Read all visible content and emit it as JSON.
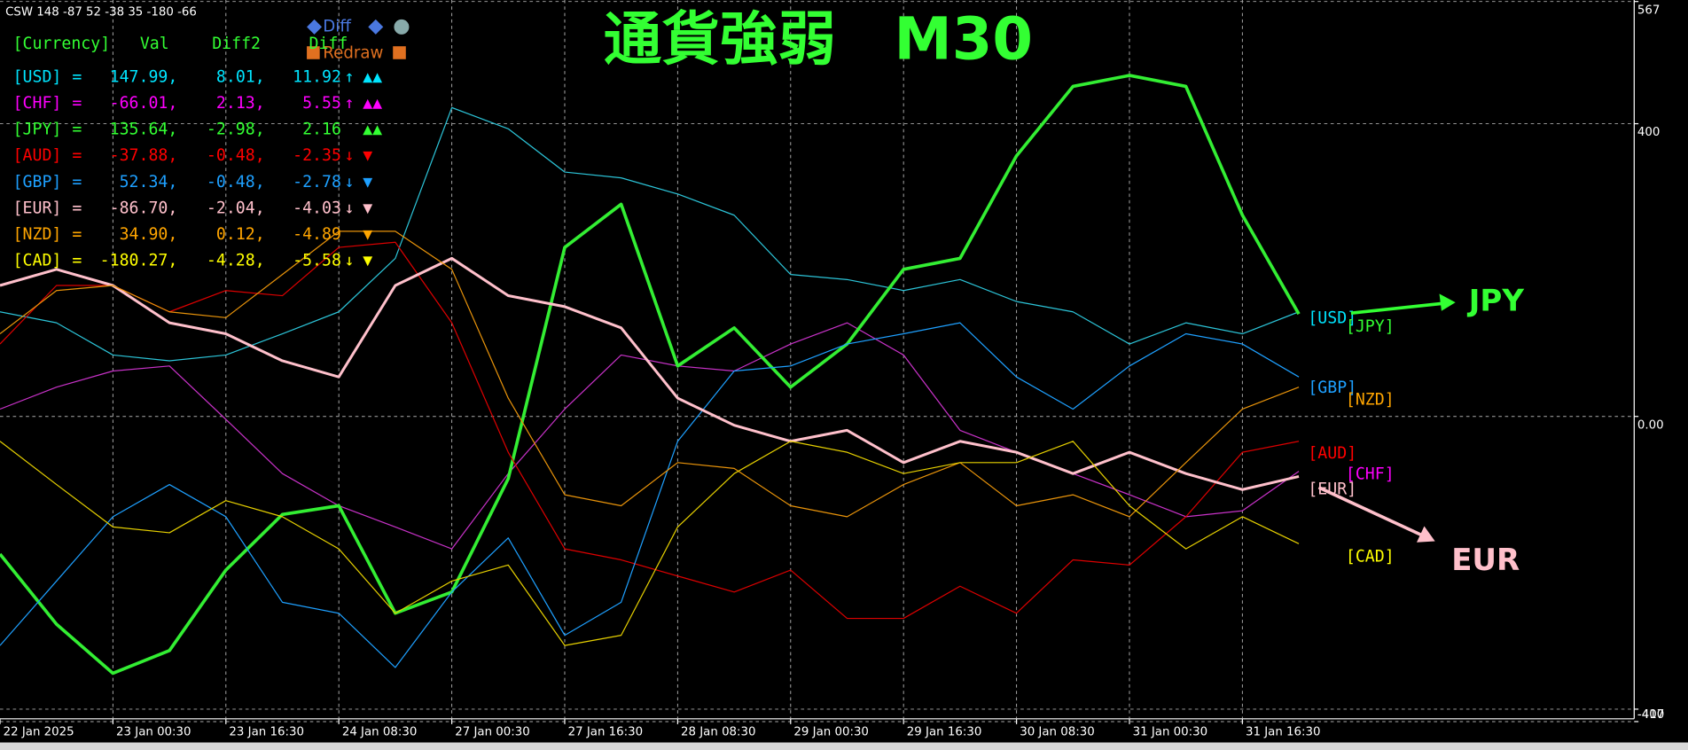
{
  "chart_data": {
    "type": "line",
    "title": "通貨強弱　M30",
    "header_text": "CSW 148 -87 52 -38 35 -180 -66",
    "x": [
      0,
      16,
      32,
      48,
      64,
      80,
      96,
      112,
      128,
      144,
      160,
      176,
      192,
      208,
      224,
      240,
      256,
      272,
      288,
      304,
      320,
      336,
      352,
      368
    ],
    "xlim": [
      0,
      463
    ],
    "xticks": [
      {
        "value": 0,
        "label": "22 Jan 2025"
      },
      {
        "value": 32,
        "label": "23 Jan 00:30"
      },
      {
        "value": 64,
        "label": "23 Jan 16:30"
      },
      {
        "value": 96,
        "label": "24 Jan 08:30"
      },
      {
        "value": 128,
        "label": "27 Jan 00:30"
      },
      {
        "value": 160,
        "label": "27 Jan 16:30"
      },
      {
        "value": 192,
        "label": "28 Jan 08:30"
      },
      {
        "value": 224,
        "label": "29 Jan 00:30"
      },
      {
        "value": 256,
        "label": "29 Jan 16:30"
      },
      {
        "value": 288,
        "label": "30 Jan 08:30"
      },
      {
        "value": 320,
        "label": "31 Jan 00:30"
      },
      {
        "value": 352,
        "label": "31 Jan 16:30"
      }
    ],
    "ylim": [
      -417,
      567
    ],
    "yticks": [
      567,
      400,
      {
        "value": 0,
        "label": "0.00"
      },
      -400,
      -417
    ],
    "grid": true,
    "series": [
      {
        "name": "[USD]",
        "color": "#00e5ff",
        "line_color": "#2cc4d8",
        "width": 1,
        "values": [
          143,
          128,
          84,
          76,
          84,
          113,
          143,
          216,
          422,
          393,
          334,
          326,
          304,
          275,
          194,
          187,
          172,
          187,
          157,
          143,
          99,
          128,
          113,
          143
        ]
      },
      {
        "name": "[CHF]",
        "color": "#ff00ff",
        "line_color": "#c832c8",
        "width": 1,
        "values": [
          10,
          40,
          62,
          69,
          -4,
          -78,
          -122,
          -151,
          -181,
          -78,
          10,
          84,
          69,
          62,
          99,
          128,
          84,
          -19,
          -49,
          -78,
          -107,
          -137,
          -129,
          -75
        ]
      },
      {
        "name": "[JPY]",
        "color": "#33ff33",
        "line_color": "#33ee33",
        "width": 3,
        "values": [
          -188,
          -284,
          -351,
          -320,
          -210,
          -134,
          -122,
          -269,
          -240,
          -85,
          231,
          290,
          69,
          121,
          40,
          99,
          201,
          216,
          356,
          451,
          466,
          451,
          275,
          140
        ]
      },
      {
        "name": "[AUD]",
        "color": "#ff0000",
        "line_color": "#dd0000",
        "width": 1,
        "values": [
          99,
          179,
          179,
          143,
          172,
          165,
          231,
          238,
          128,
          -49,
          -181,
          -196,
          -218,
          -240,
          -210,
          -276,
          -276,
          -232,
          -269,
          -196,
          -203,
          -137,
          -49,
          -34
        ]
      },
      {
        "name": "[GBP]",
        "color": "#1ea0ff",
        "line_color": "#1ea0ff",
        "width": 1,
        "values": [
          -313,
          -225,
          -137,
          -93,
          -137,
          -254,
          -269,
          -343,
          -240,
          -166,
          -299,
          -254,
          -34,
          62,
          69,
          99,
          113,
          128,
          54,
          10,
          69,
          113,
          99,
          54
        ]
      },
      {
        "name": "[EUR]",
        "color": "#ffc0cb",
        "line_color": "#ffc0cb",
        "width": 2.5,
        "values": [
          179,
          201,
          179,
          128,
          113,
          76,
          54,
          179,
          216,
          165,
          150,
          121,
          25,
          -12,
          -34,
          -19,
          -63,
          -34,
          -49,
          -78,
          -49,
          -78,
          -100,
          -82
        ]
      },
      {
        "name": "[NZD]",
        "color": "#ffa500",
        "line_color": "#e8930a",
        "width": 1,
        "values": [
          113,
          172,
          179,
          143,
          135,
          194,
          253,
          253,
          201,
          25,
          -107,
          -122,
          -63,
          -71,
          -122,
          -137,
          -93,
          -63,
          -122,
          -107,
          -137,
          -63,
          10,
          40
        ]
      },
      {
        "name": "[CAD]",
        "color": "#ffff00",
        "line_color": "#e6d000",
        "width": 1,
        "values": [
          -34,
          -93,
          -151,
          -159,
          -115,
          -137,
          -181,
          -269,
          -225,
          -203,
          -313,
          -299,
          -151,
          -78,
          -34,
          -49,
          -78,
          -63,
          -63,
          -34,
          -122,
          -181,
          -137,
          -174
        ]
      }
    ],
    "info_table": {
      "header": [
        "[Currency]",
        "Val",
        "Diff2",
        "Diff"
      ],
      "separator": "=",
      "rows": [
        {
          "val": "147.99,",
          "diff2": "8.01,",
          "diff": "11.92",
          "arrow": "↑",
          "signal": "▲▲"
        },
        {
          "val": "-66.01,",
          "diff2": "2.13,",
          "diff": "5.55",
          "arrow": "↑",
          "signal": "▲▲"
        },
        {
          "val": "135.64,",
          "diff2": "-2.98,",
          "diff": "2.16",
          "signal": "▲▲"
        },
        {
          "val": "-37.88,",
          "diff2": "-0.48,",
          "diff": "-2.35",
          "arrow": "↓",
          "signal": "▼"
        },
        {
          "val": "52.34,",
          "diff2": "-0.48,",
          "diff": "-2.78",
          "arrow": "↓",
          "signal": "▼"
        },
        {
          "val": "-86.70,",
          "diff2": "-2.04,",
          "diff": "-4.03",
          "arrow": "↓",
          "signal": "▼"
        },
        {
          "val": "34.90,",
          "diff2": "0.12,",
          "diff": "-4.89",
          "signal": "▼"
        },
        {
          "val": "-180.27,",
          "diff2": "-4.28,",
          "diff": "-5.58",
          "arrow": "↓",
          "signal": "▼"
        }
      ]
    },
    "buttons": {
      "diff": "Diff",
      "redraw": "Redraw"
    },
    "annotations": [
      {
        "text": "JPY",
        "color": "#33ff33"
      },
      {
        "text": "EUR",
        "color": "#ffc0cb"
      }
    ]
  }
}
